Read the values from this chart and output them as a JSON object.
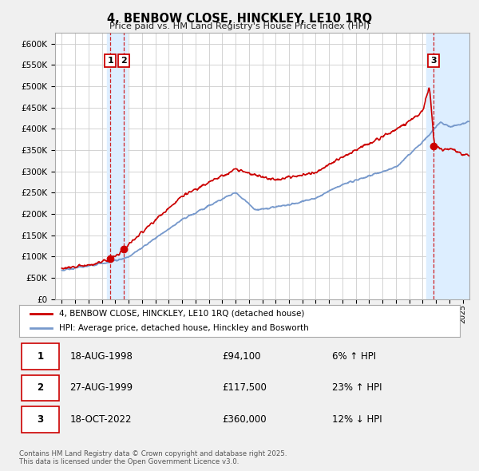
{
  "title": "4, BENBOW CLOSE, HINCKLEY, LE10 1RQ",
  "subtitle": "Price paid vs. HM Land Registry's House Price Index (HPI)",
  "background_color": "#f0f0f0",
  "plot_bg_color": "#ffffff",
  "grid_color": "#cccccc",
  "legend1": "4, BENBOW CLOSE, HINCKLEY, LE10 1RQ (detached house)",
  "legend2": "HPI: Average price, detached house, Hinckley and Bosworth",
  "red_color": "#cc0000",
  "blue_color": "#7799cc",
  "span_color": "#ddeeff",
  "transactions": [
    {
      "num": 1,
      "date": "18-AUG-1998",
      "year": 1998.63,
      "price": 94100,
      "pct": "6% ↑ HPI"
    },
    {
      "num": 2,
      "date": "27-AUG-1999",
      "year": 1999.65,
      "price": 117500,
      "pct": "23% ↑ HPI"
    },
    {
      "num": 3,
      "date": "18-OCT-2022",
      "year": 2022.8,
      "price": 360000,
      "pct": "12% ↓ HPI"
    }
  ],
  "footer": "Contains HM Land Registry data © Crown copyright and database right 2025.\nThis data is licensed under the Open Government Licence v3.0.",
  "ylim": [
    0,
    625000
  ],
  "yticks": [
    0,
    50000,
    100000,
    150000,
    200000,
    250000,
    300000,
    350000,
    400000,
    450000,
    500000,
    550000,
    600000
  ],
  "xlim_start": 1994.5,
  "xlim_end": 2025.5
}
